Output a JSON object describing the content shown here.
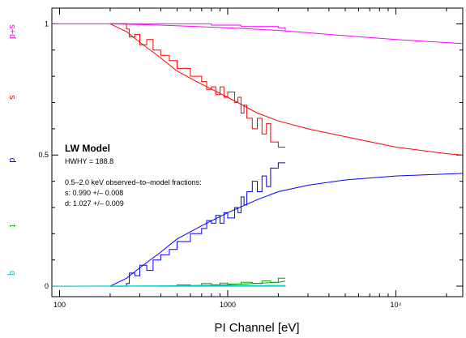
{
  "chart_data": {
    "type": "line",
    "title": "",
    "xlabel": "PI Channel [eV]",
    "ylabel": "",
    "xscale": "log",
    "xlim": [
      90,
      25000
    ],
    "ylim": [
      -0.04,
      1.06
    ],
    "grid": false,
    "x_ticks": [
      {
        "value": 100,
        "label": "100"
      },
      {
        "value": 1000,
        "label": "1000"
      },
      {
        "value": 10000,
        "label": "10⁴"
      }
    ],
    "y_ticks": [
      {
        "value": 0,
        "label": "0"
      },
      {
        "value": 0.5,
        "label": "0.5"
      },
      {
        "value": 1,
        "label": "1"
      }
    ],
    "side_labels": [
      {
        "text": "s+d",
        "color": "#ff00ff",
        "y": 0.97
      },
      {
        "text": "s",
        "color": "#ff0000",
        "y": 0.72
      },
      {
        "text": "d",
        "color": "#0000ff",
        "y": 0.48
      },
      {
        "text": "t",
        "color": "#00aa00",
        "y": 0.23
      },
      {
        "text": "q",
        "color": "#00cccc",
        "y": 0.05
      }
    ],
    "annotation": {
      "title": "LW Model",
      "hwhm": "HWHY = 188.8",
      "fractions_header": "0.5–2.0 keV observed–to–model fractions:",
      "s_line": "s: 0.990 +/– 0.008",
      "d_line": "d: 1.027 +/– 0.009"
    },
    "series": [
      {
        "name": "s+d",
        "color": "#ff00ff",
        "model": [
          [
            90,
            1
          ],
          [
            200,
            1
          ],
          [
            400,
            0.995
          ],
          [
            1000,
            0.985
          ],
          [
            2000,
            0.975
          ],
          [
            5000,
            0.955
          ],
          [
            10000,
            0.94
          ],
          [
            25000,
            0.925
          ]
        ],
        "observed": [
          [
            200,
            1
          ],
          [
            400,
            1
          ],
          [
            800,
            0.995
          ],
          [
            1200,
            0.99
          ],
          [
            1600,
            0.99
          ],
          [
            2000,
            0.985
          ],
          [
            2100,
            0.985
          ],
          [
            2200,
            0.975
          ]
        ]
      },
      {
        "name": "s",
        "color": "#ff0000",
        "model": [
          [
            200,
            1
          ],
          [
            250,
            0.97
          ],
          [
            300,
            0.93
          ],
          [
            400,
            0.87
          ],
          [
            500,
            0.82
          ],
          [
            700,
            0.77
          ],
          [
            1000,
            0.72
          ],
          [
            1500,
            0.66
          ],
          [
            2000,
            0.63
          ],
          [
            3000,
            0.6
          ],
          [
            5000,
            0.57
          ],
          [
            10000,
            0.53
          ],
          [
            20000,
            0.505
          ],
          [
            25000,
            0.5
          ]
        ],
        "observed": [
          [
            200,
            1
          ],
          [
            250,
            0.98
          ],
          [
            260,
            0.95
          ],
          [
            280,
            0.96
          ],
          [
            300,
            0.92
          ],
          [
            330,
            0.94
          ],
          [
            360,
            0.9
          ],
          [
            400,
            0.88
          ],
          [
            450,
            0.86
          ],
          [
            500,
            0.83
          ],
          [
            600,
            0.8
          ],
          [
            700,
            0.78
          ],
          [
            750,
            0.75
          ],
          [
            800,
            0.76
          ],
          [
            850,
            0.73
          ],
          [
            900,
            0.76
          ],
          [
            950,
            0.72
          ],
          [
            1000,
            0.74
          ],
          [
            1100,
            0.7
          ],
          [
            1150,
            0.72
          ],
          [
            1200,
            0.66
          ],
          [
            1250,
            0.69
          ],
          [
            1300,
            0.64
          ],
          [
            1400,
            0.6
          ],
          [
            1500,
            0.64
          ],
          [
            1600,
            0.58
          ],
          [
            1700,
            0.62
          ],
          [
            1800,
            0.55
          ],
          [
            2000,
            0.53
          ],
          [
            2200,
            0.53
          ]
        ]
      },
      {
        "name": "d",
        "color": "#0000ff",
        "model": [
          [
            200,
            0
          ],
          [
            250,
            0.03
          ],
          [
            300,
            0.07
          ],
          [
            400,
            0.13
          ],
          [
            500,
            0.18
          ],
          [
            700,
            0.23
          ],
          [
            1000,
            0.28
          ],
          [
            1500,
            0.33
          ],
          [
            2000,
            0.36
          ],
          [
            3000,
            0.385
          ],
          [
            5000,
            0.405
          ],
          [
            10000,
            0.42
          ],
          [
            25000,
            0.43
          ]
        ],
        "observed": [
          [
            200,
            0
          ],
          [
            250,
            0.01
          ],
          [
            260,
            0.05
          ],
          [
            280,
            0.04
          ],
          [
            300,
            0.08
          ],
          [
            330,
            0.06
          ],
          [
            360,
            0.1
          ],
          [
            400,
            0.12
          ],
          [
            450,
            0.14
          ],
          [
            500,
            0.17
          ],
          [
            600,
            0.2
          ],
          [
            700,
            0.22
          ],
          [
            750,
            0.25
          ],
          [
            800,
            0.24
          ],
          [
            850,
            0.27
          ],
          [
            900,
            0.24
          ],
          [
            950,
            0.28
          ],
          [
            1000,
            0.26
          ],
          [
            1100,
            0.3
          ],
          [
            1150,
            0.28
          ],
          [
            1200,
            0.34
          ],
          [
            1250,
            0.31
          ],
          [
            1300,
            0.36
          ],
          [
            1400,
            0.4
          ],
          [
            1500,
            0.36
          ],
          [
            1600,
            0.42
          ],
          [
            1700,
            0.38
          ],
          [
            1800,
            0.45
          ],
          [
            2000,
            0.47
          ],
          [
            2200,
            0.47
          ]
        ]
      },
      {
        "name": "t",
        "color": "#00aa00",
        "model": [
          [
            400,
            0
          ],
          [
            1000,
            0.005
          ],
          [
            2000,
            0.015
          ],
          [
            2200,
            0.02
          ]
        ],
        "observed": [
          [
            400,
            0
          ],
          [
            500,
            0.005
          ],
          [
            600,
            0.0
          ],
          [
            700,
            0.01
          ],
          [
            800,
            0.005
          ],
          [
            900,
            0.012
          ],
          [
            1000,
            0.008
          ],
          [
            1200,
            0.015
          ],
          [
            1400,
            0.01
          ],
          [
            1600,
            0.02
          ],
          [
            1800,
            0.015
          ],
          [
            2000,
            0.03
          ],
          [
            2200,
            0.03
          ]
        ]
      },
      {
        "name": "q",
        "color": "#00cccc",
        "model": [
          [
            90,
            0
          ],
          [
            2200,
            0.003
          ]
        ],
        "observed": [
          [
            90,
            0
          ],
          [
            2200,
            0.002
          ]
        ]
      }
    ]
  }
}
